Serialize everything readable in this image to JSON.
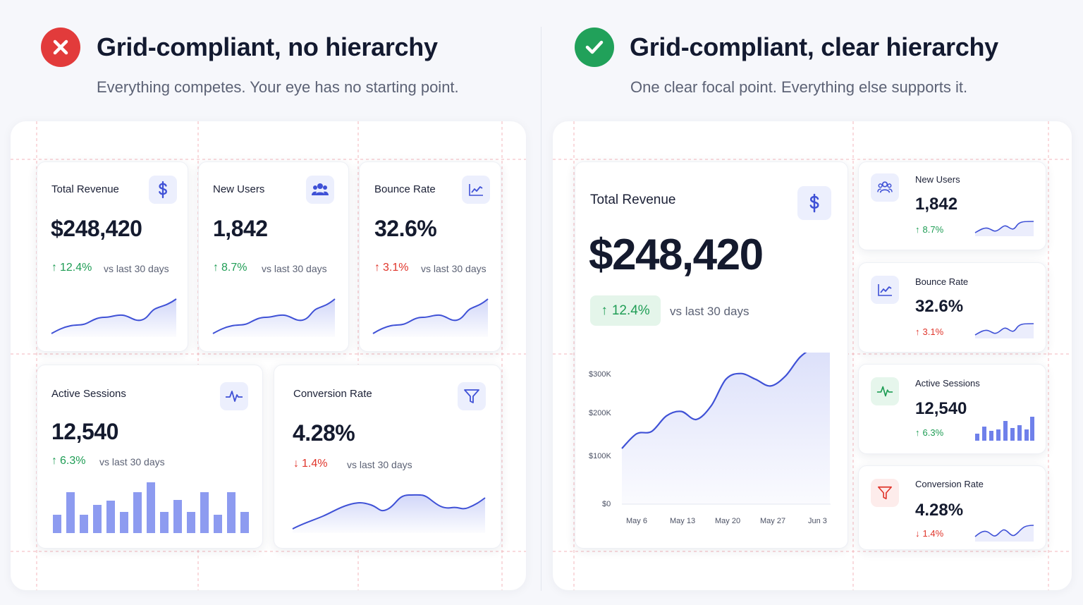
{
  "left": {
    "title": "Grid-compliant, no hierarchy",
    "subtitle": "Everything competes. Your eye has no starting point.",
    "cards": {
      "revenue": {
        "label": "Total Revenue",
        "value": "$248,420",
        "delta": "12.4%",
        "vs": "vs last 30 days",
        "icon": "dollar-icon"
      },
      "users": {
        "label": "New Users",
        "value": "1,842",
        "delta": "8.7%",
        "vs": "vs last 30 days",
        "icon": "users-icon"
      },
      "bounce": {
        "label": "Bounce Rate",
        "value": "32.6%",
        "delta": "3.1%",
        "vs": "vs last 30 days",
        "icon": "trend-chart-icon"
      },
      "sessions": {
        "label": "Active Sessions",
        "value": "12,540",
        "delta": "6.3%",
        "vs": "vs last 30 days",
        "icon": "pulse-icon"
      },
      "conversion": {
        "label": "Conversion Rate",
        "value": "4.28%",
        "delta": "1.4%",
        "vs": "vs last 30 days",
        "icon": "funnel-icon"
      }
    }
  },
  "right": {
    "title": "Grid-compliant, clear hierarchy",
    "subtitle": "One clear focal point. Everything else supports it.",
    "main": {
      "label": "Total Revenue",
      "value": "$248,420",
      "delta": "12.4%",
      "vs": "vs last 30 days"
    },
    "side_cards": {
      "users": {
        "label": "New Users",
        "value": "1,842",
        "delta": "8.7%"
      },
      "bounce": {
        "label": "Bounce Rate",
        "value": "32.6%",
        "delta": "3.1%"
      },
      "sessions": {
        "label": "Active Sessions",
        "value": "12,540",
        "delta": "6.3%"
      },
      "conversion": {
        "label": "Conversion Rate",
        "value": "4.28%",
        "delta": "1.4%"
      }
    }
  },
  "colors": {
    "accent": "#4a5ee0",
    "positive": "#1f9d55",
    "negative": "#e0352b",
    "bad_header": "#e23b3b",
    "good_header": "#21a15a",
    "grid_guides": "#f3b6bb"
  },
  "chart_data": {
    "type": "area",
    "x_tick_labels": [
      "May 6",
      "May 13",
      "May 20",
      "May 27",
      "Jun 3"
    ],
    "y_tick_labels": [
      "$0",
      "$100K",
      "$200K",
      "$300K"
    ],
    "ylim": [
      0,
      340000
    ],
    "grid": false,
    "series": [
      {
        "values": [
          125000,
          158000,
          163000,
          198000,
          208000,
          190000,
          220000,
          280000,
          293000,
          280000,
          265000,
          287000,
          330000,
          352000,
          360000
        ]
      }
    ]
  }
}
